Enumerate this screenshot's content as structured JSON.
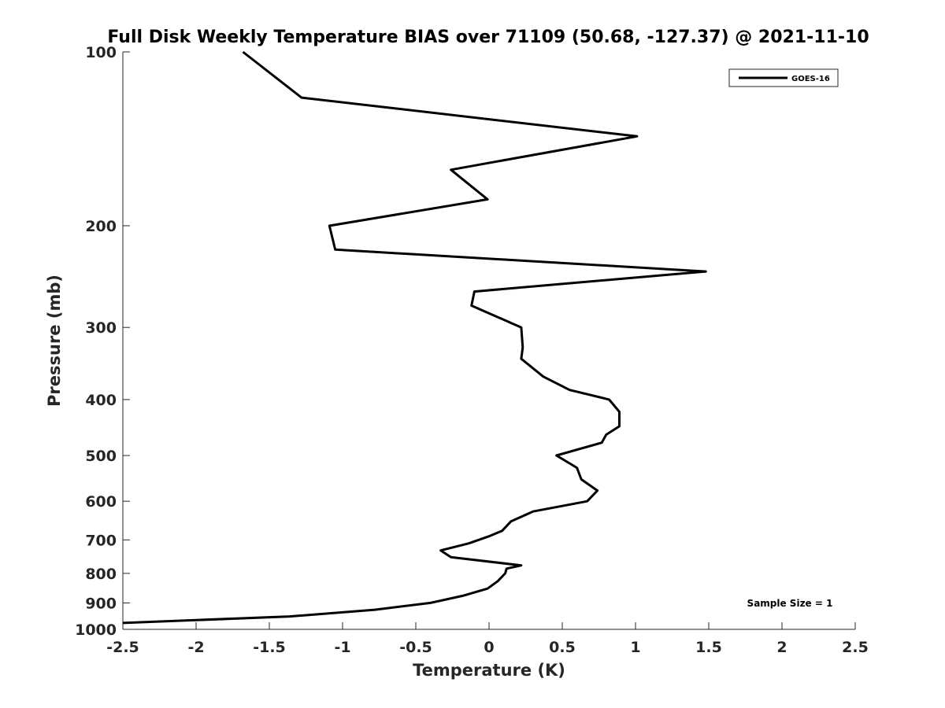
{
  "chart_data": {
    "type": "line",
    "title": "Full Disk Weekly Temperature BIAS over 71109 (50.68, -127.37) @ 2021-11-10",
    "xlabel": "Temperature (K)",
    "ylabel": "Pressure (mb)",
    "xlim": [
      -2.5,
      2.5
    ],
    "ylim": [
      1000,
      100
    ],
    "y_scale": "log",
    "y_reversed": true,
    "x_ticks": [
      "-2.5",
      "-2",
      "-1.5",
      "-1",
      "-0.5",
      "0",
      "0.5",
      "1",
      "1.5",
      "2",
      "2.5"
    ],
    "x_tick_values": [
      -2.5,
      -2,
      -1.5,
      -1,
      -0.5,
      0,
      0.5,
      1,
      1.5,
      2,
      2.5
    ],
    "y_ticks": [
      "100",
      "200",
      "300",
      "400",
      "500",
      "600",
      "700",
      "800",
      "900",
      "1000"
    ],
    "y_tick_values": [
      100,
      200,
      300,
      400,
      500,
      600,
      700,
      800,
      900,
      1000
    ],
    "grid": false,
    "legend": "top-right",
    "series": [
      {
        "name": "GOES-16",
        "color": "#000000",
        "points": [
          {
            "x": -1.68,
            "p": 100
          },
          {
            "x": -1.28,
            "p": 120
          },
          {
            "x": 1.01,
            "p": 140
          },
          {
            "x": -0.26,
            "p": 160
          },
          {
            "x": -0.01,
            "p": 180
          },
          {
            "x": -1.09,
            "p": 200
          },
          {
            "x": -1.05,
            "p": 220
          },
          {
            "x": 1.48,
            "p": 240
          },
          {
            "x": -0.1,
            "p": 260
          },
          {
            "x": -0.12,
            "p": 275
          },
          {
            "x": 0.22,
            "p": 300
          },
          {
            "x": 0.23,
            "p": 325
          },
          {
            "x": 0.22,
            "p": 340
          },
          {
            "x": 0.37,
            "p": 365
          },
          {
            "x": 0.55,
            "p": 385
          },
          {
            "x": 0.82,
            "p": 400
          },
          {
            "x": 0.89,
            "p": 420
          },
          {
            "x": 0.89,
            "p": 445
          },
          {
            "x": 0.8,
            "p": 460
          },
          {
            "x": 0.77,
            "p": 475
          },
          {
            "x": 0.46,
            "p": 500
          },
          {
            "x": 0.6,
            "p": 525
          },
          {
            "x": 0.63,
            "p": 550
          },
          {
            "x": 0.74,
            "p": 575
          },
          {
            "x": 0.67,
            "p": 600
          },
          {
            "x": 0.3,
            "p": 625
          },
          {
            "x": 0.15,
            "p": 650
          },
          {
            "x": 0.09,
            "p": 675
          },
          {
            "x": 0.0,
            "p": 690
          },
          {
            "x": -0.14,
            "p": 710
          },
          {
            "x": -0.33,
            "p": 730
          },
          {
            "x": -0.26,
            "p": 750
          },
          {
            "x": 0.22,
            "p": 775
          },
          {
            "x": 0.12,
            "p": 785
          },
          {
            "x": 0.11,
            "p": 800
          },
          {
            "x": 0.06,
            "p": 825
          },
          {
            "x": -0.01,
            "p": 850
          },
          {
            "x": -0.18,
            "p": 875
          },
          {
            "x": -0.4,
            "p": 900
          },
          {
            "x": -0.78,
            "p": 925
          },
          {
            "x": -1.36,
            "p": 950
          },
          {
            "x": -2.5,
            "p": 975
          }
        ]
      }
    ],
    "annotation": "Sample Size = 1"
  }
}
